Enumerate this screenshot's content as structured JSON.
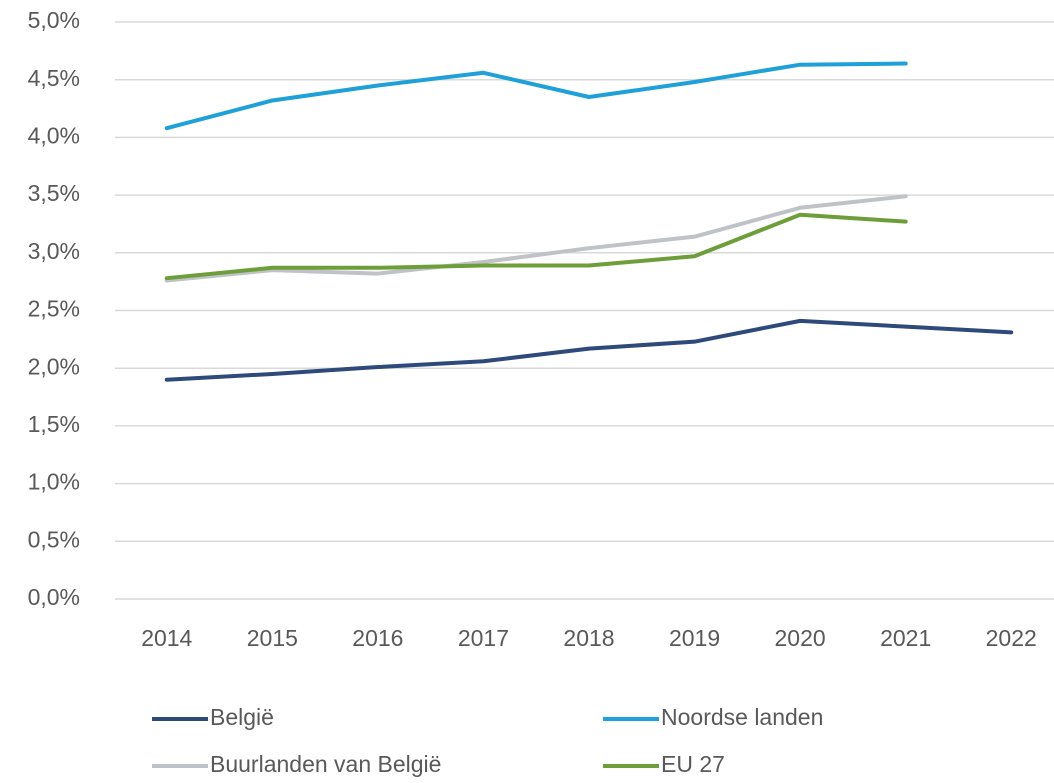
{
  "chart_data": {
    "type": "line",
    "categories": [
      "2014",
      "2015",
      "2016",
      "2017",
      "2018",
      "2019",
      "2020",
      "2021",
      "2022"
    ],
    "series": [
      {
        "name": "België",
        "color": "#2e4a7a",
        "values": [
          1.9,
          1.95,
          2.01,
          2.06,
          2.17,
          2.23,
          2.41,
          2.36,
          2.31
        ]
      },
      {
        "name": "Noordse landen",
        "color": "#1fa0d8",
        "values": [
          4.08,
          4.32,
          4.45,
          4.56,
          4.35,
          4.48,
          4.63,
          4.64,
          null
        ]
      },
      {
        "name": "Buurlanden van België",
        "color": "#bfc3c7",
        "values": [
          2.76,
          2.85,
          2.82,
          2.92,
          3.04,
          3.14,
          3.39,
          3.49,
          null
        ]
      },
      {
        "name": "EU 27",
        "color": "#6e9e3a",
        "values": [
          2.78,
          2.87,
          2.87,
          2.89,
          2.89,
          2.97,
          3.33,
          3.27,
          null
        ]
      }
    ],
    "ylim": [
      0,
      5
    ],
    "yticks": [
      {
        "value": 0,
        "label": "0,0%"
      },
      {
        "value": 0.5,
        "label": "0,5%"
      },
      {
        "value": 1,
        "label": "1,0%"
      },
      {
        "value": 1.5,
        "label": "1,5%"
      },
      {
        "value": 2,
        "label": "2,0%"
      },
      {
        "value": 2.5,
        "label": "2,5%"
      },
      {
        "value": 3,
        "label": "3,0%"
      },
      {
        "value": 3.5,
        "label": "3,5%"
      },
      {
        "value": 4,
        "label": "4,0%"
      },
      {
        "value": 4.5,
        "label": "4,5%"
      },
      {
        "value": 5,
        "label": "5,0%"
      }
    ],
    "grid": true,
    "legend": "bottom"
  }
}
